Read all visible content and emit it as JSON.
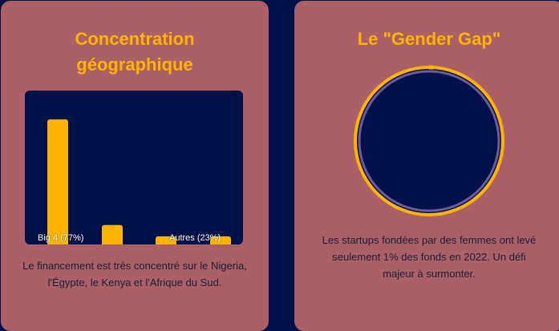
{
  "left_card": {
    "title": "Concentration géographique",
    "description": "Le financement est très concentré sur le Nigeria, l'Égypte, le Kenya et l'Afrique du Sud."
  },
  "right_card": {
    "title": "Le \"Gender Gap\"",
    "description": "Les startups fondées par des femmes ont levé seulement 1% des fonds en 2022. Un défi majeur à surmonter."
  },
  "chart_data": {
    "type": "bar",
    "categories": [
      "Big 4 (77%)",
      "",
      "Autres (23%)",
      ""
    ],
    "values": [
      77,
      12,
      5,
      5
    ],
    "ylim": [
      0,
      100
    ],
    "xlabel": "",
    "ylabel": "",
    "grid": false,
    "bar_color": "#ffb400"
  },
  "gauge": {
    "value_percent": 1,
    "ring_color": "#ffb400",
    "fill_color": "#00114a"
  },
  "colors": {
    "background": "#00114a",
    "card": "#ab5f66",
    "accent": "#ffb400"
  }
}
